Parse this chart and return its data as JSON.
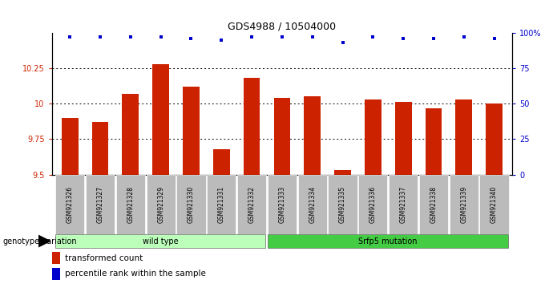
{
  "title": "GDS4988 / 10504000",
  "samples": [
    "GSM921326",
    "GSM921327",
    "GSM921328",
    "GSM921329",
    "GSM921330",
    "GSM921331",
    "GSM921332",
    "GSM921333",
    "GSM921334",
    "GSM921335",
    "GSM921336",
    "GSM921337",
    "GSM921338",
    "GSM921339",
    "GSM921340"
  ],
  "transformed_counts": [
    9.9,
    9.87,
    10.07,
    10.28,
    10.12,
    9.68,
    10.18,
    10.04,
    10.05,
    9.53,
    10.03,
    10.01,
    9.97,
    10.03,
    10.0
  ],
  "percentile_ranks": [
    97,
    97,
    97,
    97,
    96,
    95,
    97,
    97,
    97,
    93,
    97,
    96,
    96,
    97,
    96
  ],
  "bar_color": "#cc2200",
  "dot_color": "#0000cc",
  "ylim_left": [
    9.5,
    10.5
  ],
  "ylim_right": [
    0,
    100
  ],
  "yticks_left": [
    9.5,
    9.75,
    10.0,
    10.25
  ],
  "yticks_right": [
    0,
    25,
    50,
    75,
    100
  ],
  "ytick_labels_left": [
    "9.5",
    "9.75",
    "10",
    "10.25"
  ],
  "ytick_labels_right": [
    "0",
    "25",
    "50",
    "75",
    "100%"
  ],
  "hlines": [
    9.75,
    10.0,
    10.25
  ],
  "group1_label": "wild type",
  "group1_count": 7,
  "group2_label": "Srfp5 mutation",
  "group2_count": 8,
  "group1_color": "#bbffbb",
  "group2_color": "#44cc44",
  "xbar_color": "#bbbbbb",
  "legend_red_label": "transformed count",
  "legend_blue_label": "percentile rank within the sample",
  "genotype_label": "genotype/variation",
  "title_fontsize": 9,
  "tick_fontsize": 7,
  "sample_fontsize": 5.5,
  "group_fontsize": 7,
  "legend_fontsize": 7.5
}
